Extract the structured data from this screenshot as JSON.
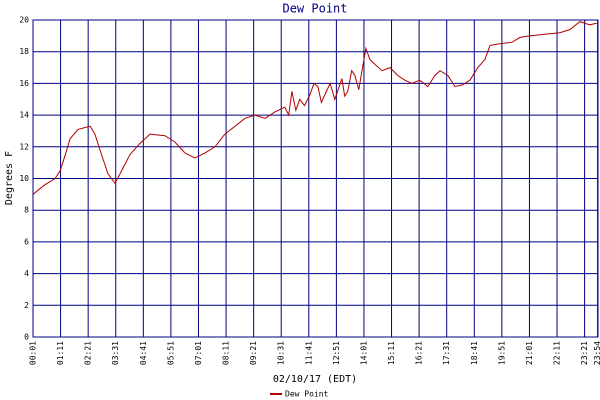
{
  "chart_data": {
    "type": "line",
    "title": "Dew Point",
    "x_label": "02/10/17 (EDT)",
    "y_label": "Degrees F",
    "xlim": [
      1,
      1435
    ],
    "ylim": [
      0,
      20
    ],
    "xticks": [
      {
        "value": 1,
        "label": "00:01"
      },
      {
        "value": 71,
        "label": "01:11"
      },
      {
        "value": 141,
        "label": "02:21"
      },
      {
        "value": 211,
        "label": "03:31"
      },
      {
        "value": 281,
        "label": "04:41"
      },
      {
        "value": 351,
        "label": "05:51"
      },
      {
        "value": 421,
        "label": "07:01"
      },
      {
        "value": 491,
        "label": "08:11"
      },
      {
        "value": 561,
        "label": "09:21"
      },
      {
        "value": 631,
        "label": "10:31"
      },
      {
        "value": 701,
        "label": "11:41"
      },
      {
        "value": 771,
        "label": "12:51"
      },
      {
        "value": 841,
        "label": "14:01"
      },
      {
        "value": 911,
        "label": "15:11"
      },
      {
        "value": 981,
        "label": "16:21"
      },
      {
        "value": 1051,
        "label": "17:31"
      },
      {
        "value": 1121,
        "label": "18:41"
      },
      {
        "value": 1191,
        "label": "19:51"
      },
      {
        "value": 1261,
        "label": "21:01"
      },
      {
        "value": 1331,
        "label": "22:11"
      },
      {
        "value": 1401,
        "label": "23:21"
      },
      {
        "value": 1434,
        "label": "23:54"
      }
    ],
    "yticks": [
      0,
      2,
      4,
      6,
      8,
      10,
      12,
      14,
      16,
      18,
      20
    ],
    "grid": true,
    "grid_color": "#000080",
    "legend": "bottom",
    "x": [
      1,
      31,
      57,
      70,
      83,
      95,
      115,
      146,
      158,
      171,
      191,
      209,
      226,
      247,
      272,
      298,
      336,
      361,
      387,
      412,
      437,
      463,
      488,
      514,
      539,
      564,
      590,
      615,
      640,
      650,
      658,
      668,
      678,
      690,
      704,
      714,
      724,
      733,
      742,
      755,
      767,
      785,
      792,
      800,
      810,
      818,
      828,
      836,
      846,
      856,
      869,
      887,
      907,
      927,
      945,
      963,
      983,
      1003,
      1021,
      1034,
      1054,
      1072,
      1090,
      1110,
      1130,
      1148,
      1161,
      1186,
      1217,
      1237,
      1262,
      1300,
      1338,
      1364,
      1389,
      1414,
      1432
    ],
    "series": [
      {
        "name": "Dew Point",
        "color": "#b00000",
        "values": [
          9.0,
          9.6,
          10.0,
          10.5,
          11.5,
          12.5,
          13.1,
          13.3,
          12.8,
          11.8,
          10.3,
          9.7,
          10.5,
          11.5,
          12.2,
          12.8,
          12.7,
          12.3,
          11.6,
          11.3,
          11.6,
          12.0,
          12.8,
          13.3,
          13.8,
          14.0,
          13.8,
          14.2,
          14.5,
          14.0,
          15.5,
          14.3,
          15.0,
          14.6,
          15.3,
          16.0,
          15.8,
          14.8,
          15.3,
          16.0,
          15.0,
          16.3,
          15.2,
          15.5,
          16.8,
          16.5,
          15.6,
          16.8,
          18.2,
          17.5,
          17.2,
          16.8,
          17.0,
          16.5,
          16.2,
          16.0,
          16.2,
          15.8,
          16.5,
          16.8,
          16.5,
          15.8,
          15.9,
          16.2,
          17.0,
          17.5,
          18.4,
          18.5,
          18.6,
          18.9,
          19.0,
          19.1,
          19.2,
          19.4,
          19.9,
          19.7,
          19.8
        ]
      }
    ]
  }
}
